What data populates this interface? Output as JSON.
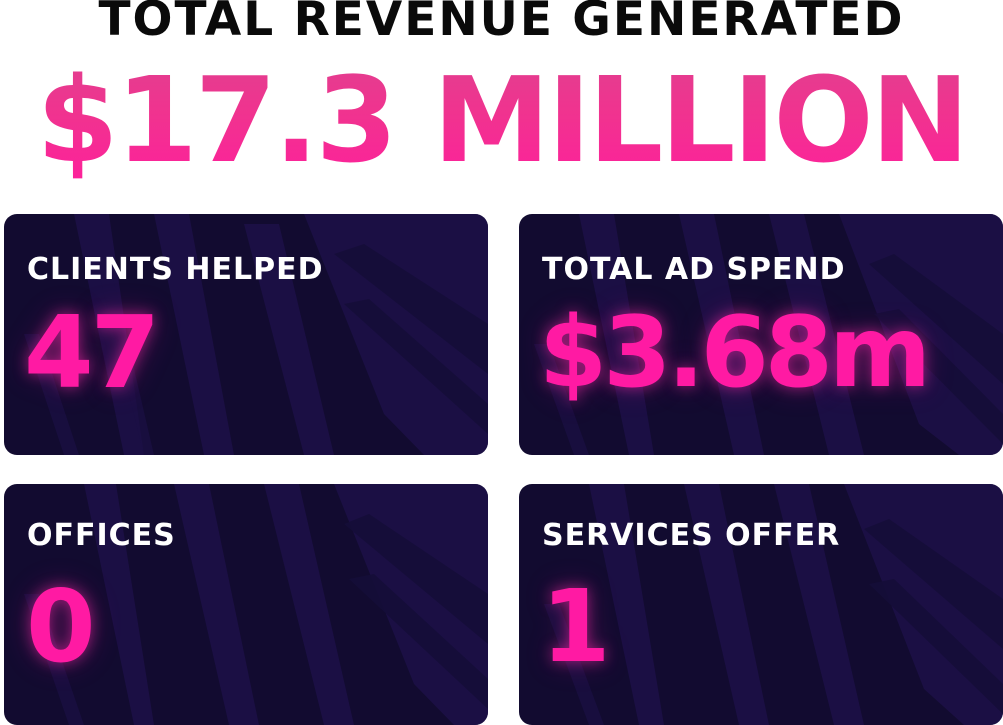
{
  "header": {
    "title": "TOTAL REVENUE GENERATED",
    "figure": "$17.3 MILLION"
  },
  "stats": [
    {
      "label": "CLIENTS HELPED",
      "value": "47"
    },
    {
      "label": "TOTAL AD SPEND",
      "value": "$3.68m"
    },
    {
      "label": "OFFICES",
      "value": "0"
    },
    {
      "label": "SERVICES OFFER",
      "value": "1"
    }
  ],
  "colors": {
    "accent_pink": "#ff1aa3",
    "card_background": "#120b30",
    "card_texture": "#1d1148",
    "headline_text": "#0a0a0a"
  }
}
